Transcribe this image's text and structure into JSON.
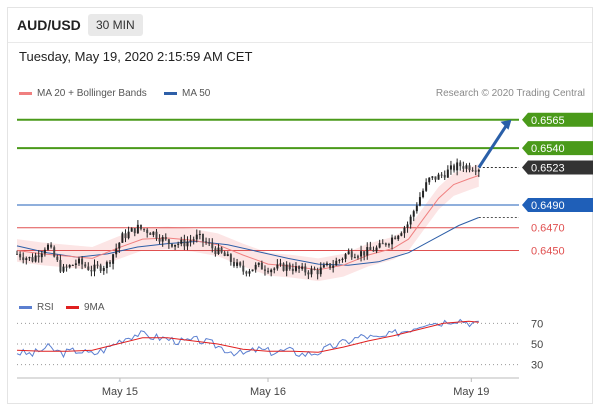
{
  "header": {
    "symbol": "AUD/USD",
    "timeframe": "30 MIN"
  },
  "timestamp": "Tuesday, May 19, 2020 2:15:59 AM CET",
  "legend": {
    "ma20": {
      "label": "MA 20 + Bollinger Bands",
      "color": "#f08080"
    },
    "ma50": {
      "label": "MA 50",
      "color": "#2e5fa8"
    }
  },
  "credit": "Research © 2020 Trading Central",
  "rsi_legend": {
    "rsi": {
      "label": "RSI",
      "color": "#5b7fd0"
    },
    "ma9": {
      "label": "9MA",
      "color": "#e02020"
    }
  },
  "chart_data": {
    "type": "line",
    "title": "",
    "y_range": [
      0.6424,
      0.6578
    ],
    "x_ticks": [
      {
        "label": "May 15",
        "pos": 0.205
      },
      {
        "label": "May 16",
        "pos": 0.5
      },
      {
        "label": "May 19",
        "pos": 0.905
      }
    ],
    "levels": [
      {
        "value": 0.6565,
        "label": "0.6565",
        "kind": "resistance-target",
        "color": "#4a9a1a"
      },
      {
        "value": 0.654,
        "label": "0.6540",
        "kind": "resistance",
        "color": "#4a9a1a"
      },
      {
        "value": 0.6523,
        "label": "0.6523",
        "kind": "last-price",
        "color": "#333333"
      },
      {
        "value": 0.649,
        "label": "0.6490",
        "kind": "pivot",
        "color": "#1f5fb8"
      },
      {
        "value": 0.647,
        "label": "0.6470",
        "kind": "support",
        "color": "#e05050"
      },
      {
        "value": 0.645,
        "label": "0.6450",
        "kind": "support",
        "color": "#e05050"
      }
    ],
    "price_path": [
      [
        0.0,
        0.6447
      ],
      [
        0.03,
        0.6442
      ],
      [
        0.06,
        0.6455
      ],
      [
        0.09,
        0.6432
      ],
      [
        0.12,
        0.644
      ],
      [
        0.15,
        0.6433
      ],
      [
        0.18,
        0.6438
      ],
      [
        0.21,
        0.6462
      ],
      [
        0.24,
        0.647
      ],
      [
        0.27,
        0.6466
      ],
      [
        0.3,
        0.6457
      ],
      [
        0.33,
        0.6456
      ],
      [
        0.36,
        0.6462
      ],
      [
        0.39,
        0.6452
      ],
      [
        0.42,
        0.6443
      ],
      [
        0.45,
        0.6432
      ],
      [
        0.48,
        0.6436
      ],
      [
        0.51,
        0.6434
      ],
      [
        0.54,
        0.6436
      ],
      [
        0.57,
        0.6432
      ],
      [
        0.6,
        0.6432
      ],
      [
        0.63,
        0.6438
      ],
      [
        0.66,
        0.6448
      ],
      [
        0.69,
        0.6448
      ],
      [
        0.72,
        0.6452
      ],
      [
        0.75,
        0.6462
      ],
      [
        0.78,
        0.6474
      ],
      [
        0.8,
        0.6495
      ],
      [
        0.82,
        0.6512
      ],
      [
        0.84,
        0.6515
      ],
      [
        0.86,
        0.652
      ],
      [
        0.88,
        0.6525
      ],
      [
        0.9,
        0.6524
      ],
      [
        0.92,
        0.6523
      ]
    ],
    "ma20": [
      [
        0.0,
        0.645
      ],
      [
        0.05,
        0.6447
      ],
      [
        0.1,
        0.6445
      ],
      [
        0.15,
        0.6443
      ],
      [
        0.2,
        0.6452
      ],
      [
        0.25,
        0.646
      ],
      [
        0.3,
        0.6461
      ],
      [
        0.35,
        0.6459
      ],
      [
        0.4,
        0.6455
      ],
      [
        0.45,
        0.6446
      ],
      [
        0.5,
        0.6438
      ],
      [
        0.55,
        0.6436
      ],
      [
        0.6,
        0.6433
      ],
      [
        0.65,
        0.6437
      ],
      [
        0.7,
        0.6446
      ],
      [
        0.75,
        0.6452
      ],
      [
        0.78,
        0.646
      ],
      [
        0.81,
        0.6478
      ],
      [
        0.84,
        0.6496
      ],
      [
        0.87,
        0.6508
      ],
      [
        0.9,
        0.6513
      ],
      [
        0.92,
        0.6516
      ]
    ],
    "ma50": [
      [
        0.0,
        0.6454
      ],
      [
        0.06,
        0.6448
      ],
      [
        0.12,
        0.6444
      ],
      [
        0.18,
        0.6447
      ],
      [
        0.24,
        0.6453
      ],
      [
        0.3,
        0.6456
      ],
      [
        0.36,
        0.6458
      ],
      [
        0.42,
        0.6455
      ],
      [
        0.48,
        0.6449
      ],
      [
        0.54,
        0.6443
      ],
      [
        0.6,
        0.6438
      ],
      [
        0.66,
        0.6437
      ],
      [
        0.72,
        0.644
      ],
      [
        0.78,
        0.6448
      ],
      [
        0.83,
        0.646
      ],
      [
        0.88,
        0.6472
      ],
      [
        0.92,
        0.6479
      ]
    ],
    "bb_upper_offset": 0.001,
    "rsi": {
      "y_range": [
        20,
        80
      ],
      "levels": [
        70,
        50,
        30
      ],
      "rsi_path": [
        [
          0.0,
          42
        ],
        [
          0.03,
          40
        ],
        [
          0.06,
          47
        ],
        [
          0.09,
          41
        ],
        [
          0.12,
          44
        ],
        [
          0.15,
          40
        ],
        [
          0.18,
          46
        ],
        [
          0.21,
          55
        ],
        [
          0.24,
          60
        ],
        [
          0.27,
          57
        ],
        [
          0.3,
          55
        ],
        [
          0.33,
          52
        ],
        [
          0.36,
          54
        ],
        [
          0.39,
          50
        ],
        [
          0.42,
          44
        ],
        [
          0.45,
          40
        ],
        [
          0.48,
          45
        ],
        [
          0.51,
          42
        ],
        [
          0.54,
          44
        ],
        [
          0.57,
          40
        ],
        [
          0.6,
          42
        ],
        [
          0.63,
          48
        ],
        [
          0.66,
          53
        ],
        [
          0.69,
          58
        ],
        [
          0.72,
          55
        ],
        [
          0.75,
          60
        ],
        [
          0.78,
          64
        ],
        [
          0.8,
          68
        ],
        [
          0.82,
          72
        ],
        [
          0.84,
          70
        ],
        [
          0.86,
          73
        ],
        [
          0.88,
          74
        ],
        [
          0.9,
          71
        ],
        [
          0.92,
          69
        ]
      ],
      "ma9_path": [
        [
          0.0,
          44
        ],
        [
          0.05,
          43
        ],
        [
          0.1,
          43
        ],
        [
          0.15,
          44
        ],
        [
          0.2,
          50
        ],
        [
          0.25,
          56
        ],
        [
          0.3,
          56
        ],
        [
          0.35,
          53
        ],
        [
          0.4,
          50
        ],
        [
          0.45,
          45
        ],
        [
          0.5,
          43
        ],
        [
          0.55,
          43
        ],
        [
          0.6,
          42
        ],
        [
          0.65,
          47
        ],
        [
          0.7,
          53
        ],
        [
          0.75,
          58
        ],
        [
          0.8,
          64
        ],
        [
          0.85,
          70
        ],
        [
          0.9,
          72
        ],
        [
          0.92,
          71
        ]
      ]
    },
    "projection_arrow": {
      "from": [
        0.92,
        0.6523
      ],
      "to": [
        0.985,
        0.6565
      ]
    }
  }
}
